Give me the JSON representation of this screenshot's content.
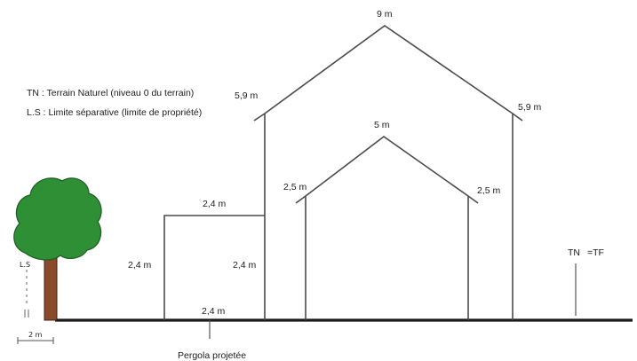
{
  "legend": {
    "tn": "TN : Terrain Naturel (niveau 0 du terrain)",
    "ls": "L.S : Limite séparative (limite de propriété)"
  },
  "big_house": {
    "ridge_height": "9 m",
    "left_eave_height": "5,9 m",
    "right_eave_height": "5,9 m"
  },
  "small_house": {
    "ridge_height": "5 m",
    "left_eave_height": "2,5 m",
    "right_eave_height": "2,5 m"
  },
  "pergola": {
    "top_height": "2,4 m",
    "left_height": "2,4 m",
    "right_height": "2,4 m",
    "ground_width": "2,4 m",
    "caption": "Pergola projetée"
  },
  "tn_marker": {
    "tn": "TN",
    "tf": "=TF"
  },
  "limit": {
    "label": "L.S",
    "scale_label": "2 m"
  },
  "colors": {
    "foliage": "#2e8f34",
    "trunk": "#8a4a2c"
  }
}
